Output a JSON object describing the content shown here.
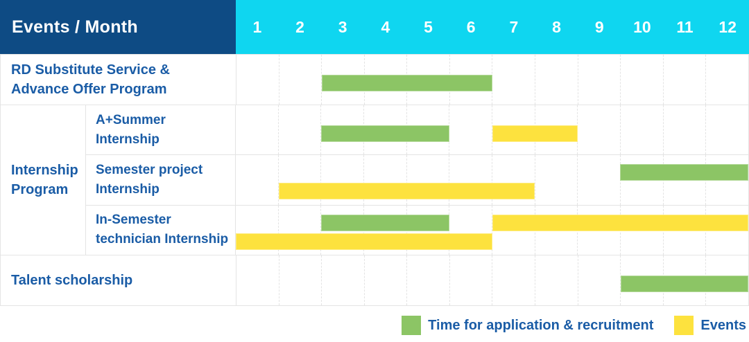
{
  "header": {
    "title": "Events / Month",
    "months": [
      "1",
      "2",
      "3",
      "4",
      "5",
      "6",
      "7",
      "8",
      "9",
      "10",
      "11",
      "12"
    ]
  },
  "legend": {
    "items": [
      {
        "label": "Time for application & recruitment",
        "color_key": "green",
        "color": "#8CC565"
      },
      {
        "label": "Events",
        "color_key": "yellow",
        "color": "#FDE23E"
      }
    ]
  },
  "colors": {
    "header_bg": "#0E4B84",
    "months_bg": "#0FD6F0",
    "label_text": "#1A5CA6",
    "green": "#8CC565",
    "yellow": "#FDE23E",
    "border": "#E4E4E4",
    "grid": "#E3E3E3"
  },
  "chart_data": {
    "type": "bar",
    "variant": "gantt",
    "title": "Events / Month",
    "x_axis": {
      "label": "Month",
      "ticks": [
        1,
        2,
        3,
        4,
        5,
        6,
        7,
        8,
        9,
        10,
        11,
        12
      ],
      "range": [
        1,
        12
      ],
      "grid": "dashed-vertical"
    },
    "legend_position": "bottom-right",
    "series_legend": [
      {
        "name": "Time for application & recruitment",
        "color": "#8CC565"
      },
      {
        "name": "Events",
        "color": "#FDE23E"
      }
    ],
    "groups": {
      "Internship Program": {
        "label": "Internship Program",
        "label_lines": [
          "Internship",
          "Program"
        ]
      }
    },
    "rows": [
      {
        "group": null,
        "label": "RD Substitute Service & Advance Offer Program",
        "label_lines": [
          "RD Substitute Service &",
          "Advance Offer Program"
        ],
        "bars": [
          {
            "series": "Time for application & recruitment",
            "color_key": "green",
            "start_month": 3,
            "end_month": 6,
            "track": "mid"
          }
        ]
      },
      {
        "group": "Internship Program",
        "label": "A+Summer Internship",
        "label_lines": [
          "A+Summer",
          "Internship"
        ],
        "bars": [
          {
            "series": "Time for application & recruitment",
            "color_key": "green",
            "start_month": 3,
            "end_month": 5,
            "track": "mid"
          },
          {
            "series": "Events",
            "color_key": "yellow",
            "start_month": 7,
            "end_month": 8,
            "track": "mid"
          }
        ]
      },
      {
        "group": "Internship Program",
        "label": "Semester project Internship",
        "label_lines": [
          "Semester project",
          "Internship"
        ],
        "bars": [
          {
            "series": "Time for application & recruitment",
            "color_key": "green",
            "start_month": 10,
            "end_month": 12,
            "track": "top"
          },
          {
            "series": "Events",
            "color_key": "yellow",
            "start_month": 2,
            "end_month": 7,
            "track": "bottom"
          }
        ]
      },
      {
        "group": "Internship Program",
        "label": "In-Semester technician Internship",
        "label_lines": [
          "In-Semester",
          "technician Internship"
        ],
        "bars": [
          {
            "series": "Time for application & recruitment",
            "color_key": "green",
            "start_month": 3,
            "end_month": 5,
            "track": "top"
          },
          {
            "series": "Events",
            "color_key": "yellow",
            "start_month": 7,
            "end_month": 12,
            "track": "top"
          },
          {
            "series": "Events",
            "color_key": "yellow",
            "start_month": 1,
            "end_month": 6,
            "track": "bottom"
          }
        ]
      },
      {
        "group": null,
        "label": "Talent scholarship",
        "label_lines": [
          "Talent scholarship"
        ],
        "bars": [
          {
            "series": "Time for application & recruitment",
            "color_key": "green",
            "start_month": 10,
            "end_month": 12,
            "track": "mid"
          }
        ]
      }
    ]
  }
}
